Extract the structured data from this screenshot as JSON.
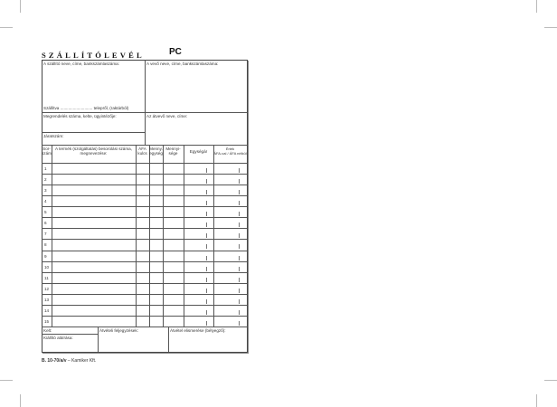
{
  "title": "SZÁLLÍTÓLEVÉL",
  "code": "PC",
  "supplier_label": "A szállító neve, címe, bankszámlaszáma:",
  "buyer_label": "A vevő neve, címe, bankszámlaszáma:",
  "shipping_label": "Szállítva ............................ telepről, (raktárból)",
  "order_label": "Megrendelés száma, kelte, ügyintézője:",
  "receiver_label": "Az átvevő neve, címe:",
  "route_label": "Járatszám:",
  "columns": {
    "row_no": [
      "Sor-",
      "szám"
    ],
    "description": [
      "A termék (szolgáltatás) besorolási száma,",
      "megnevezése:"
    ],
    "vat": [
      "ÁFA",
      "kulcs"
    ],
    "unit": [
      "Menny.",
      "egység"
    ],
    "quantity": [
      "Mennyi-",
      "sége"
    ],
    "unit_price": [
      "Egységár"
    ],
    "value": [
      "Érték",
      "ÁFA-val / ÁFA nélkül"
    ]
  },
  "rows": [
    "1",
    "2",
    "3",
    "4",
    "5",
    "6",
    "7",
    "8",
    "9",
    "10",
    "11",
    "12",
    "13",
    "14",
    "15"
  ],
  "footer": {
    "date_label": "Kelt:",
    "issuer_signature_label": "Kiállító aláírása:",
    "delivery_remarks_label": "Átvételi feljegyzések:",
    "receipt_ack_label": "Átvétel elismerése (bélyegző):"
  },
  "form_code": "B. 10-70/a/v",
  "publisher": "–  Kamiker Kft."
}
